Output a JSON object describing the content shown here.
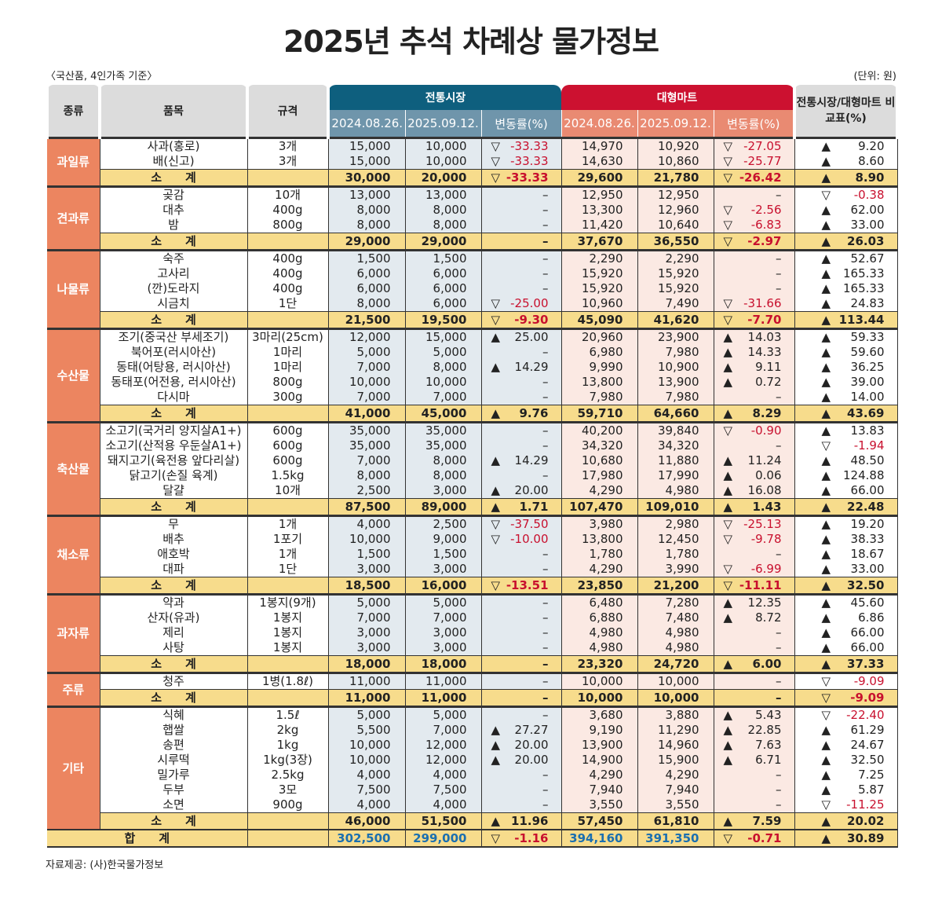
{
  "title": "2025년 추석 차례상 물가정보",
  "basis": "〈국산품, 4인가족 기준〉",
  "unit": "(단위: 원)",
  "source": "자료제공: (사)한국물가정보",
  "headers": {
    "category": "종류",
    "item": "품목",
    "spec": "규격",
    "traditional": "전통시장",
    "mart": "대형마트",
    "compare": "전통시장/대형마트 비교표(%)",
    "date1": "2024.08.26.",
    "date2": "2025.09.12.",
    "change": "변동률(%)"
  },
  "subtotal_label": "소　　계",
  "total_label": "합　　계",
  "groups": [
    {
      "category": "과일류",
      "rows": [
        [
          "사과(홍로)",
          "3개",
          "15,000",
          "10,000",
          "▽",
          "-33.33",
          "14,970",
          "10,920",
          "▽",
          "-27.05",
          "▲",
          "9.20"
        ],
        [
          "배(신고)",
          "3개",
          "15,000",
          "10,000",
          "▽",
          "-33.33",
          "14,630",
          "10,860",
          "▽",
          "-25.77",
          "▲",
          "8.60"
        ]
      ],
      "subtotal": [
        "30,000",
        "20,000",
        "▽",
        "-33.33",
        "29,600",
        "21,780",
        "▽",
        "-26.42",
        "▲",
        "8.90"
      ]
    },
    {
      "category": "견과류",
      "rows": [
        [
          "곶감",
          "10개",
          "13,000",
          "13,000",
          "",
          "–",
          "12,950",
          "12,950",
          "",
          "–",
          "▽",
          "-0.38"
        ],
        [
          "대추",
          "400g",
          "8,000",
          "8,000",
          "",
          "–",
          "13,300",
          "12,960",
          "▽",
          "-2.56",
          "▲",
          "62.00"
        ],
        [
          "밤",
          "800g",
          "8,000",
          "8,000",
          "",
          "–",
          "11,420",
          "10,640",
          "▽",
          "-6.83",
          "▲",
          "33.00"
        ]
      ],
      "subtotal": [
        "29,000",
        "29,000",
        "",
        "–",
        "37,670",
        "36,550",
        "▽",
        "-2.97",
        "▲",
        "26.03"
      ]
    },
    {
      "category": "나물류",
      "rows": [
        [
          "숙주",
          "400g",
          "1,500",
          "1,500",
          "",
          "–",
          "2,290",
          "2,290",
          "",
          "–",
          "▲",
          "52.67"
        ],
        [
          "고사리",
          "400g",
          "6,000",
          "6,000",
          "",
          "–",
          "15,920",
          "15,920",
          "",
          "–",
          "▲",
          "165.33"
        ],
        [
          "(깐)도라지",
          "400g",
          "6,000",
          "6,000",
          "",
          "–",
          "15,920",
          "15,920",
          "",
          "–",
          "▲",
          "165.33"
        ],
        [
          "시금치",
          "1단",
          "8,000",
          "6,000",
          "▽",
          "-25.00",
          "10,960",
          "7,490",
          "▽",
          "-31.66",
          "▲",
          "24.83"
        ]
      ],
      "subtotal": [
        "21,500",
        "19,500",
        "▽",
        "-9.30",
        "45,090",
        "41,620",
        "▽",
        "-7.70",
        "▲",
        "113.44"
      ]
    },
    {
      "category": "수산물",
      "rows": [
        [
          "조기(중국산 부세조기)",
          "3마리(25cm)",
          "12,000",
          "15,000",
          "▲",
          "25.00",
          "20,960",
          "23,900",
          "▲",
          "14.03",
          "▲",
          "59.33"
        ],
        [
          "북어포(러시아산)",
          "1마리",
          "5,000",
          "5,000",
          "",
          "–",
          "6,980",
          "7,980",
          "▲",
          "14.33",
          "▲",
          "59.60"
        ],
        [
          "동태(어탕용, 러시아산)",
          "1마리",
          "7,000",
          "8,000",
          "▲",
          "14.29",
          "9,990",
          "10,900",
          "▲",
          "9.11",
          "▲",
          "36.25"
        ],
        [
          "동태포(어전용, 러시아산)",
          "800g",
          "10,000",
          "10,000",
          "",
          "–",
          "13,800",
          "13,900",
          "▲",
          "0.72",
          "▲",
          "39.00"
        ],
        [
          "다시마",
          "300g",
          "7,000",
          "7,000",
          "",
          "–",
          "7,980",
          "7,980",
          "",
          "–",
          "▲",
          "14.00"
        ]
      ],
      "subtotal": [
        "41,000",
        "45,000",
        "▲",
        "9.76",
        "59,710",
        "64,660",
        "▲",
        "8.29",
        "▲",
        "43.69"
      ]
    },
    {
      "category": "축산물",
      "rows": [
        [
          "소고기(국거리 양지살A1+)",
          "600g",
          "35,000",
          "35,000",
          "",
          "–",
          "40,200",
          "39,840",
          "▽",
          "-0.90",
          "▲",
          "13.83"
        ],
        [
          "소고기(산적용 우둔살A1+)",
          "600g",
          "35,000",
          "35,000",
          "",
          "–",
          "34,320",
          "34,320",
          "",
          "–",
          "▽",
          "-1.94"
        ],
        [
          "돼지고기(육전용 앞다리살)",
          "600g",
          "7,000",
          "8,000",
          "▲",
          "14.29",
          "10,680",
          "11,880",
          "▲",
          "11.24",
          "▲",
          "48.50"
        ],
        [
          "닭고기(손질 육계)",
          "1.5kg",
          "8,000",
          "8,000",
          "",
          "–",
          "17,980",
          "17,990",
          "▲",
          "0.06",
          "▲",
          "124.88"
        ],
        [
          "달걀",
          "10개",
          "2,500",
          "3,000",
          "▲",
          "20.00",
          "4,290",
          "4,980",
          "▲",
          "16.08",
          "▲",
          "66.00"
        ]
      ],
      "subtotal": [
        "87,500",
        "89,000",
        "▲",
        "1.71",
        "107,470",
        "109,010",
        "▲",
        "1.43",
        "▲",
        "22.48"
      ]
    },
    {
      "category": "채소류",
      "rows": [
        [
          "무",
          "1개",
          "4,000",
          "2,500",
          "▽",
          "-37.50",
          "3,980",
          "2,980",
          "▽",
          "-25.13",
          "▲",
          "19.20"
        ],
        [
          "배추",
          "1포기",
          "10,000",
          "9,000",
          "▽",
          "-10.00",
          "13,800",
          "12,450",
          "▽",
          "-9.78",
          "▲",
          "38.33"
        ],
        [
          "애호박",
          "1개",
          "1,500",
          "1,500",
          "",
          "–",
          "1,780",
          "1,780",
          "",
          "–",
          "▲",
          "18.67"
        ],
        [
          "대파",
          "1단",
          "3,000",
          "3,000",
          "",
          "–",
          "4,290",
          "3,990",
          "▽",
          "-6.99",
          "▲",
          "33.00"
        ]
      ],
      "subtotal": [
        "18,500",
        "16,000",
        "▽",
        "-13.51",
        "23,850",
        "21,200",
        "▽",
        "-11.11",
        "▲",
        "32.50"
      ]
    },
    {
      "category": "과자류",
      "rows": [
        [
          "약과",
          "1봉지(9개)",
          "5,000",
          "5,000",
          "",
          "–",
          "6,480",
          "7,280",
          "▲",
          "12.35",
          "▲",
          "45.60"
        ],
        [
          "산자(유과)",
          "1봉지",
          "7,000",
          "7,000",
          "",
          "–",
          "6,880",
          "7,480",
          "▲",
          "8.72",
          "▲",
          "6.86"
        ],
        [
          "제리",
          "1봉지",
          "3,000",
          "3,000",
          "",
          "–",
          "4,980",
          "4,980",
          "",
          "–",
          "▲",
          "66.00"
        ],
        [
          "사탕",
          "1봉지",
          "3,000",
          "3,000",
          "",
          "–",
          "4,980",
          "4,980",
          "",
          "–",
          "▲",
          "66.00"
        ]
      ],
      "subtotal": [
        "18,000",
        "18,000",
        "",
        "–",
        "23,320",
        "24,720",
        "▲",
        "6.00",
        "▲",
        "37.33"
      ]
    },
    {
      "category": "주류",
      "rows": [
        [
          "청주",
          "1병(1.8ℓ)",
          "11,000",
          "11,000",
          "",
          "–",
          "10,000",
          "10,000",
          "",
          "–",
          "▽",
          "-9.09"
        ]
      ],
      "subtotal": [
        "11,000",
        "11,000",
        "",
        "–",
        "10,000",
        "10,000",
        "",
        "–",
        "▽",
        "-9.09"
      ]
    },
    {
      "category": "기타",
      "rows": [
        [
          "식혜",
          "1.5ℓ",
          "5,000",
          "5,000",
          "",
          "–",
          "3,680",
          "3,880",
          "▲",
          "5.43",
          "▽",
          "-22.40"
        ],
        [
          "햅쌀",
          "2kg",
          "5,500",
          "7,000",
          "▲",
          "27.27",
          "9,190",
          "11,290",
          "▲",
          "22.85",
          "▲",
          "61.29"
        ],
        [
          "송편",
          "1kg",
          "10,000",
          "12,000",
          "▲",
          "20.00",
          "13,900",
          "14,960",
          "▲",
          "7.63",
          "▲",
          "24.67"
        ],
        [
          "시루떡",
          "1kg(3장)",
          "10,000",
          "12,000",
          "▲",
          "20.00",
          "14,900",
          "15,900",
          "▲",
          "6.71",
          "▲",
          "32.50"
        ],
        [
          "밀가루",
          "2.5kg",
          "4,000",
          "4,000",
          "",
          "–",
          "4,290",
          "4,290",
          "",
          "–",
          "▲",
          "7.25"
        ],
        [
          "두부",
          "3모",
          "7,500",
          "7,500",
          "",
          "–",
          "7,940",
          "7,940",
          "",
          "–",
          "▲",
          "5.87"
        ],
        [
          "소면",
          "900g",
          "4,000",
          "4,000",
          "",
          "–",
          "3,550",
          "3,550",
          "",
          "–",
          "▽",
          "-11.25"
        ]
      ],
      "subtotal": [
        "46,000",
        "51,500",
        "▲",
        "11.96",
        "57,450",
        "61,810",
        "▲",
        "7.59",
        "▲",
        "20.02"
      ]
    }
  ],
  "total": [
    "302,500",
    "299,000",
    "▽",
    "-1.16",
    "394,160",
    "391,350",
    "▽",
    "-0.71",
    "▲",
    "30.89"
  ]
}
